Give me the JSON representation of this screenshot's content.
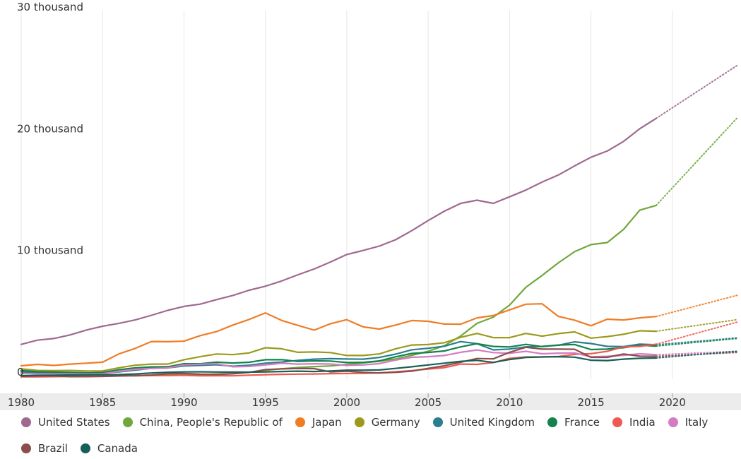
{
  "chart_data": {
    "type": "line",
    "x_range": [
      1980,
      2024
    ],
    "ylim": [
      0,
      30000
    ],
    "y_ticks": [
      {
        "value": 0,
        "label": "0"
      },
      {
        "value": 10000,
        "label": "10 thousand"
      },
      {
        "value": 20000,
        "label": "20 thousand"
      },
      {
        "value": 30000,
        "label": "30 thousand"
      }
    ],
    "x_ticks": [
      "1980",
      "1985",
      "1990",
      "1995",
      "2000",
      "2005",
      "2010",
      "2015",
      "2020"
    ],
    "grid": "vertical",
    "legend_position": "bottom",
    "actual_through": 2019,
    "projection_through": 2024,
    "projection_style": "dotted",
    "series": [
      {
        "name": "United States",
        "color": "#a0698f",
        "values": [
          2860,
          3210,
          3340,
          3640,
          4040,
          4350,
          4590,
          4870,
          5250,
          5660,
          5980,
          6170,
          6540,
          6880,
          7310,
          7640,
          8070,
          8580,
          9060,
          9630,
          10250,
          10580,
          10940,
          11460,
          12210,
          13040,
          13810,
          14450,
          14710,
          14450,
          14990,
          15540,
          16200,
          16780,
          17530,
          18240,
          18750,
          19540,
          20580,
          21430
        ],
        "projection": [
          [
            2019,
            21430
          ],
          [
            2024,
            25800
          ]
        ]
      },
      {
        "name": "China, People's Republic of",
        "color": "#6fa83a",
        "values": [
          310,
          290,
          280,
          300,
          310,
          310,
          300,
          270,
          310,
          350,
          360,
          380,
          430,
          450,
          560,
          730,
          860,
          960,
          1030,
          1090,
          1210,
          1340,
          1470,
          1660,
          1960,
          2290,
          2750,
          3550,
          4590,
          5100,
          6090,
          7550,
          8530,
          9570,
          10480,
          11060,
          11230,
          12310,
          13890,
          14280
        ],
        "projection": [
          [
            2019,
            14280
          ],
          [
            2024,
            21500
          ]
        ]
      },
      {
        "name": "Japan",
        "color": "#f07c24",
        "values": [
          1100,
          1220,
          1130,
          1240,
          1320,
          1400,
          2080,
          2530,
          3100,
          3080,
          3130,
          3580,
          3910,
          4450,
          4910,
          5450,
          4830,
          4420,
          4030,
          4560,
          4890,
          4300,
          4120,
          4450,
          4820,
          4760,
          4530,
          4520,
          5040,
          5230,
          5700,
          6160,
          6200,
          5160,
          4850,
          4390,
          4930,
          4860,
          5040,
          5150
        ],
        "projection": [
          [
            2019,
            5150
          ],
          [
            2024,
            6900
          ]
        ]
      },
      {
        "name": "Germany",
        "color": "#9b9a1d",
        "values": [
          850,
          720,
          700,
          720,
          680,
          680,
          940,
          1150,
          1240,
          1240,
          1600,
          1850,
          2070,
          2020,
          2160,
          2590,
          2500,
          2210,
          2240,
          2190,
          1950,
          1950,
          2080,
          2500,
          2810,
          2850,
          3000,
          3440,
          3760,
          3420,
          3420,
          3760,
          3540,
          3750,
          3890,
          3380,
          3500,
          3690,
          3980,
          3940
        ],
        "projection": [
          [
            2019,
            3940
          ],
          [
            2024,
            4900
          ]
        ]
      },
      {
        "name": "United Kingdom",
        "color": "#2b7e8e",
        "values": [
          600,
          540,
          510,
          480,
          460,
          490,
          600,
          740,
          900,
          930,
          1090,
          1140,
          1190,
          1070,
          1150,
          1320,
          1410,
          1550,
          1650,
          1690,
          1660,
          1650,
          1790,
          2060,
          2420,
          2540,
          2710,
          3090,
          2920,
          2410,
          2480,
          2660,
          2700,
          2790,
          3070,
          2930,
          2700,
          2680,
          2880,
          2830
        ],
        "projection": [
          [
            2019,
            2830
          ],
          [
            2024,
            3400
          ]
        ]
      },
      {
        "name": "France",
        "color": "#13824c",
        "values": [
          700,
          620,
          580,
          560,
          530,
          550,
          780,
          930,
          1010,
          1020,
          1270,
          1270,
          1400,
          1330,
          1390,
          1600,
          1610,
          1460,
          1510,
          1490,
          1370,
          1380,
          1500,
          1840,
          2120,
          2200,
          2320,
          2660,
          2920,
          2690,
          2650,
          2860,
          2680,
          2810,
          2850,
          2440,
          2470,
          2590,
          2790,
          2720
        ],
        "projection": [
          [
            2019,
            2720
          ],
          [
            2024,
            3350
          ]
        ]
      },
      {
        "name": "India",
        "color": "#ee5a52",
        "values": [
          190,
          200,
          210,
          220,
          220,
          240,
          260,
          290,
          300,
          300,
          320,
          280,
          290,
          280,
          330,
          370,
          400,
          420,
          430,
          460,
          470,
          490,
          520,
          610,
          710,
          830,
          950,
          1240,
          1220,
          1370,
          1710,
          1830,
          1830,
          1860,
          2040,
          2100,
          2290,
          2650,
          2700,
          2870
        ],
        "projection": [
          [
            2019,
            2870
          ],
          [
            2024,
            4700
          ]
        ]
      },
      {
        "name": "Italy",
        "color": "#d47cc3",
        "values": [
          480,
          430,
          430,
          440,
          430,
          450,
          640,
          820,
          880,
          920,
          1180,
          1230,
          1270,
          1020,
          1050,
          1170,
          1310,
          1240,
          1270,
          1250,
          1140,
          1170,
          1280,
          1570,
          1800,
          1850,
          1950,
          2210,
          2400,
          2190,
          2130,
          2290,
          2090,
          2140,
          2160,
          1840,
          1880,
          1960,
          2090,
          2010
        ],
        "projection": [
          [
            2019,
            2010
          ],
          [
            2024,
            2300
          ]
        ]
      },
      {
        "name": "Brazil",
        "color": "#8c4e4c",
        "values": [
          240,
          270,
          280,
          210,
          210,
          230,
          270,
          300,
          340,
          450,
          470,
          410,
          390,
          440,
          560,
          790,
          850,
          880,
          870,
          600,
          660,
          560,
          510,
          560,
          670,
          890,
          1110,
          1400,
          1700,
          1670,
          2210,
          2620,
          2470,
          2470,
          2460,
          1800,
          1800,
          2070,
          1890,
          1880
        ],
        "projection": [
          [
            2019,
            1880
          ],
          [
            2024,
            2200
          ]
        ]
      },
      {
        "name": "Canada",
        "color": "#176058",
        "values": [
          280,
          310,
          320,
          350,
          360,
          370,
          380,
          430,
          510,
          570,
          600,
          610,
          590,
          580,
          580,
          600,
          630,
          660,
          630,
          680,
          740,
          740,
          760,
          890,
          1020,
          1170,
          1320,
          1470,
          1550,
          1380,
          1620,
          1790,
          1830,
          1850,
          1810,
          1560,
          1530,
          1650,
          1720,
          1740
        ],
        "projection": [
          [
            2019,
            1740
          ],
          [
            2024,
            2300
          ]
        ]
      }
    ]
  }
}
